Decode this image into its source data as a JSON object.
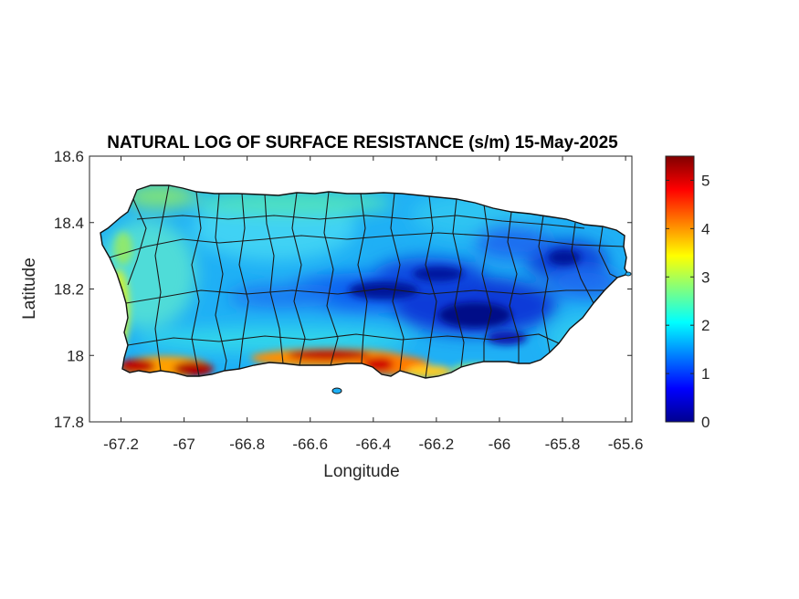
{
  "chart_data": {
    "type": "heatmap",
    "title": "NATURAL LOG OF SURFACE RESISTANCE (s/m) 15-May-2025",
    "xlabel": "Longitude",
    "ylabel": "Latitude",
    "xlim": [
      -67.3,
      -65.58
    ],
    "ylim": [
      17.8,
      18.6
    ],
    "xticks": [
      -67.2,
      -67,
      -66.8,
      -66.6,
      -66.4,
      -66.2,
      -66,
      -65.8,
      -65.6
    ],
    "xtick_labels": [
      "-67.2",
      "-67",
      "-66.8",
      "-66.6",
      "-66.4",
      "-66.2",
      "-66",
      "-65.8",
      "-65.6"
    ],
    "yticks": [
      17.8,
      18,
      18.2,
      18.4,
      18.6
    ],
    "ytick_labels": [
      "17.8",
      "18",
      "18.2",
      "18.4",
      "18.6"
    ],
    "colorbar": {
      "colormap": "jet",
      "clim": [
        0,
        5.5
      ],
      "ticks": [
        0,
        1,
        2,
        3,
        4,
        5
      ],
      "tick_labels": [
        "0",
        "1",
        "2",
        "3",
        "4",
        "5"
      ]
    },
    "region": "Puerto Rico",
    "field_summary": {
      "typical_value": 2.0,
      "east_central_mountains_min": 0.3,
      "south_coast_max": 5.2,
      "west_coast_value": 2.8
    }
  }
}
